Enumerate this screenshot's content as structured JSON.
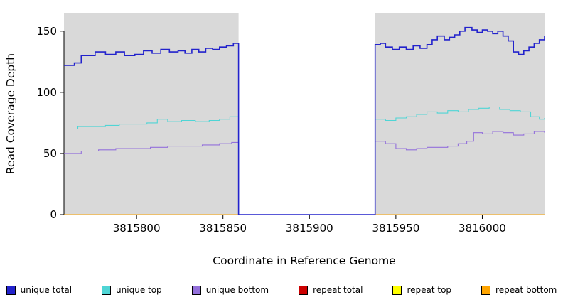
{
  "chart_data": {
    "type": "line",
    "subtype": "step",
    "title": "",
    "xlabel": "Coordinate in Reference Genome",
    "ylabel": "Read Coverage Depth",
    "xlim": [
      3815758,
      3816036
    ],
    "ylim": [
      0,
      165
    ],
    "xticks": [
      3815800,
      3815850,
      3815900,
      3815950,
      3816000
    ],
    "yticks": [
      0,
      50,
      100,
      150
    ],
    "grid": false,
    "legend_position": "bottom",
    "plot_bg": "#d9d9d9",
    "gap_region": {
      "start": 3815859,
      "end": 3815938
    },
    "series": [
      {
        "name": "unique total",
        "color": "#2222cc",
        "points": [
          [
            3815758,
            122
          ],
          [
            3815764,
            124
          ],
          [
            3815768,
            130
          ],
          [
            3815776,
            133
          ],
          [
            3815782,
            131
          ],
          [
            3815788,
            133
          ],
          [
            3815793,
            130
          ],
          [
            3815799,
            131
          ],
          [
            3815804,
            134
          ],
          [
            3815809,
            132
          ],
          [
            3815814,
            135
          ],
          [
            3815819,
            133
          ],
          [
            3815824,
            134
          ],
          [
            3815828,
            132
          ],
          [
            3815832,
            135
          ],
          [
            3815836,
            133
          ],
          [
            3815840,
            136
          ],
          [
            3815844,
            135
          ],
          [
            3815848,
            137
          ],
          [
            3815852,
            138
          ],
          [
            3815856,
            140
          ],
          [
            3815859,
            0
          ],
          [
            3815938,
            139
          ],
          [
            3815941,
            140
          ],
          [
            3815944,
            137
          ],
          [
            3815948,
            135
          ],
          [
            3815952,
            137
          ],
          [
            3815956,
            135
          ],
          [
            3815960,
            138
          ],
          [
            3815964,
            136
          ],
          [
            3815968,
            139
          ],
          [
            3815971,
            143
          ],
          [
            3815974,
            146
          ],
          [
            3815978,
            143
          ],
          [
            3815981,
            145
          ],
          [
            3815984,
            147
          ],
          [
            3815987,
            150
          ],
          [
            3815990,
            153
          ],
          [
            3815994,
            151
          ],
          [
            3815997,
            149
          ],
          [
            3816000,
            151
          ],
          [
            3816003,
            150
          ],
          [
            3816006,
            148
          ],
          [
            3816009,
            150
          ],
          [
            3816012,
            146
          ],
          [
            3816015,
            142
          ],
          [
            3816018,
            133
          ],
          [
            3816021,
            131
          ],
          [
            3816024,
            134
          ],
          [
            3816027,
            137
          ],
          [
            3816030,
            140
          ],
          [
            3816033,
            143
          ],
          [
            3816036,
            146
          ]
        ]
      },
      {
        "name": "unique top",
        "color": "#4fd5d5",
        "points": [
          [
            3815758,
            70
          ],
          [
            3815766,
            72
          ],
          [
            3815774,
            72
          ],
          [
            3815782,
            73
          ],
          [
            3815790,
            74
          ],
          [
            3815798,
            74
          ],
          [
            3815806,
            75
          ],
          [
            3815812,
            78
          ],
          [
            3815818,
            76
          ],
          [
            3815826,
            77
          ],
          [
            3815834,
            76
          ],
          [
            3815842,
            77
          ],
          [
            3815848,
            78
          ],
          [
            3815854,
            80
          ],
          [
            3815859,
            0
          ],
          [
            3815938,
            78
          ],
          [
            3815944,
            77
          ],
          [
            3815950,
            79
          ],
          [
            3815956,
            80
          ],
          [
            3815962,
            82
          ],
          [
            3815968,
            84
          ],
          [
            3815974,
            83
          ],
          [
            3815980,
            85
          ],
          [
            3815986,
            84
          ],
          [
            3815992,
            86
          ],
          [
            3815998,
            87
          ],
          [
            3816004,
            88
          ],
          [
            3816010,
            86
          ],
          [
            3816016,
            85
          ],
          [
            3816022,
            84
          ],
          [
            3816028,
            80
          ],
          [
            3816033,
            78
          ],
          [
            3816036,
            79
          ]
        ]
      },
      {
        "name": "unique bottom",
        "color": "#9370db",
        "points": [
          [
            3815758,
            50
          ],
          [
            3815768,
            52
          ],
          [
            3815778,
            53
          ],
          [
            3815788,
            54
          ],
          [
            3815798,
            54
          ],
          [
            3815808,
            55
          ],
          [
            3815818,
            56
          ],
          [
            3815828,
            56
          ],
          [
            3815838,
            57
          ],
          [
            3815848,
            58
          ],
          [
            3815855,
            59
          ],
          [
            3815859,
            0
          ],
          [
            3815938,
            60
          ],
          [
            3815944,
            58
          ],
          [
            3815950,
            54
          ],
          [
            3815956,
            53
          ],
          [
            3815962,
            54
          ],
          [
            3815968,
            55
          ],
          [
            3815974,
            55
          ],
          [
            3815980,
            56
          ],
          [
            3815986,
            58
          ],
          [
            3815991,
            60
          ],
          [
            3815995,
            67
          ],
          [
            3816000,
            66
          ],
          [
            3816006,
            68
          ],
          [
            3816012,
            67
          ],
          [
            3816018,
            65
          ],
          [
            3816024,
            66
          ],
          [
            3816030,
            68
          ],
          [
            3816036,
            67
          ]
        ]
      },
      {
        "name": "repeat total",
        "color": "#cc0000",
        "points": [
          [
            3815758,
            0
          ],
          [
            3816036,
            0
          ]
        ]
      },
      {
        "name": "repeat top",
        "color": "#ffff00",
        "points": [
          [
            3815758,
            0
          ],
          [
            3816036,
            0
          ]
        ]
      },
      {
        "name": "repeat bottom",
        "color": "#ffa500",
        "points": [
          [
            3815758,
            0
          ],
          [
            3816036,
            0
          ]
        ]
      }
    ]
  }
}
